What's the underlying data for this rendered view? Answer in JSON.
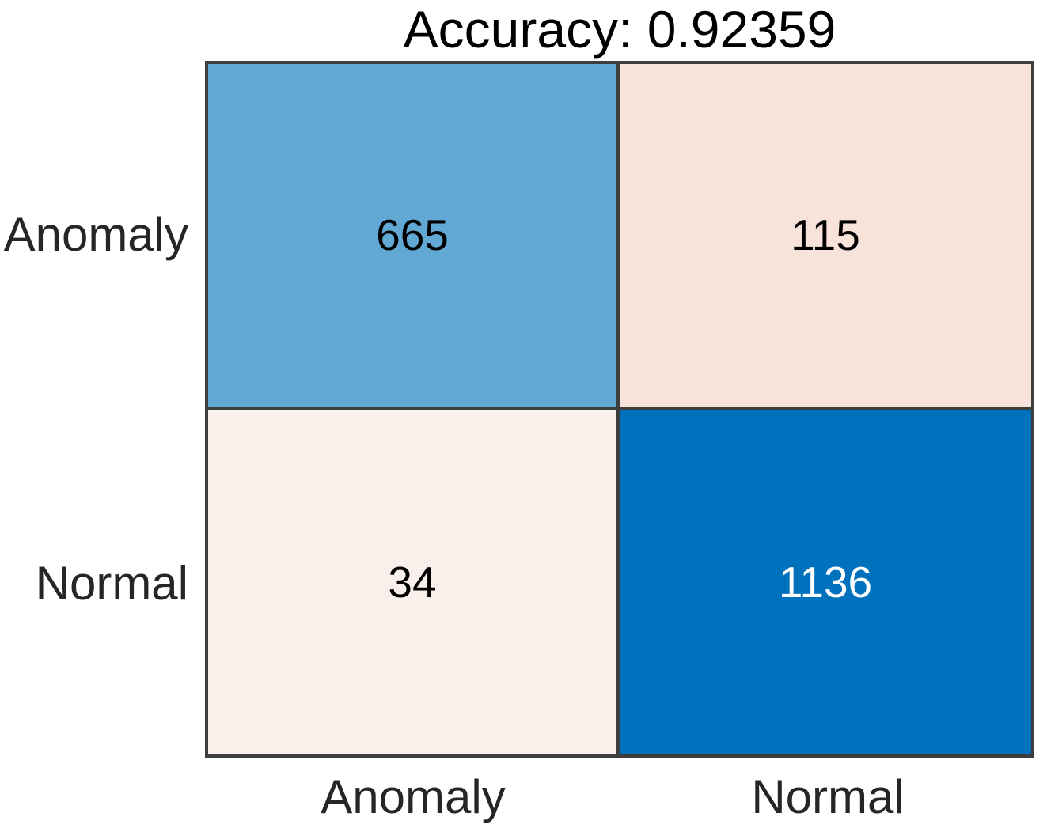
{
  "title": "Accuracy: 0.92359",
  "chart_data": {
    "type": "heatmap",
    "subtype": "confusion-matrix",
    "title": "Accuracy: 0.92359",
    "accuracy": 0.92359,
    "row_labels": [
      "Anomaly",
      "Normal"
    ],
    "col_labels": [
      "Anomaly",
      "Normal"
    ],
    "values": [
      [
        665,
        115
      ],
      [
        34,
        1136
      ]
    ],
    "cells": [
      {
        "true_class": "Anomaly",
        "predicted_class": "Anomaly",
        "value": "665",
        "bg": "#61a8d4",
        "fg": "#000000"
      },
      {
        "true_class": "Anomaly",
        "predicted_class": "Normal",
        "value": "115",
        "bg": "#f8e3db",
        "fg": "#000000"
      },
      {
        "true_class": "Normal",
        "predicted_class": "Anomaly",
        "value": "34",
        "bg": "#faf0eb",
        "fg": "#000000"
      },
      {
        "true_class": "Normal",
        "predicted_class": "Normal",
        "value": "1136",
        "bg": "#0072bd",
        "fg": "#ffffff"
      }
    ],
    "grid_color": "#3e3e3e",
    "label_color": "#262626",
    "background_color": "#ffffff",
    "legend": "none",
    "axis_ticks": "category labels only"
  }
}
